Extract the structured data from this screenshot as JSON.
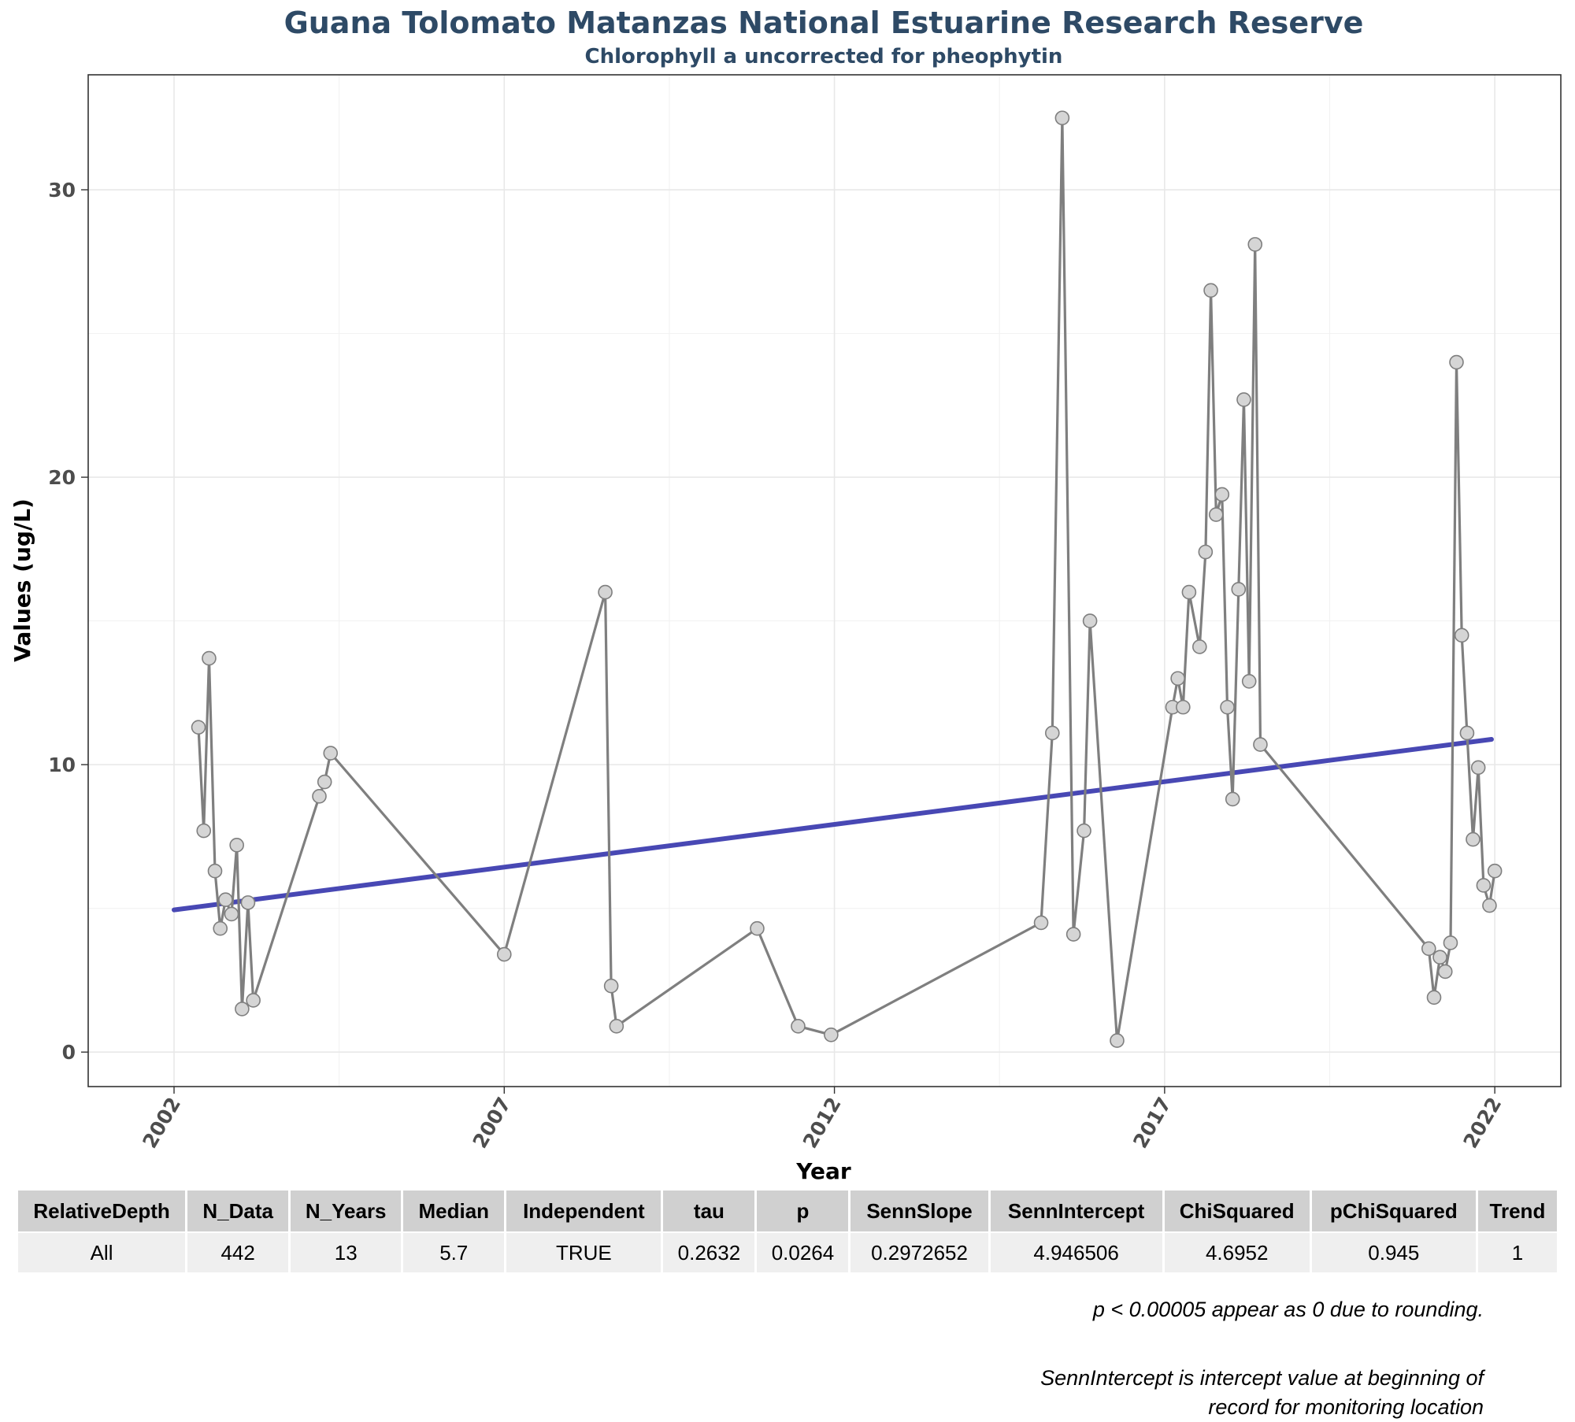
{
  "chart_data": {
    "type": "line",
    "title": "Guana Tolomato Matanzas National Estuarine Research Reserve",
    "subtitle": "Chlorophyll a uncorrected for pheophytin",
    "xlabel": "Year",
    "ylabel": "Values (ug/L)",
    "xlim": [
      2000.7,
      2023.0
    ],
    "ylim": [
      -1.2,
      34.0
    ],
    "x_ticks": [
      "2002",
      "2007",
      "2012",
      "2017",
      "2022"
    ],
    "x_tick_values": [
      2002,
      2007,
      2012,
      2017,
      2022
    ],
    "y_ticks": [
      "0",
      "10",
      "20",
      "30"
    ],
    "y_tick_values": [
      0,
      10,
      20,
      30
    ],
    "grid": true,
    "series": [
      {
        "kind": "observations",
        "color": "#7f7f7f",
        "x": [
          2002.37,
          2002.45,
          2002.53,
          2002.62,
          2002.7,
          2002.78,
          2002.87,
          2002.95,
          2003.03,
          2003.12,
          2003.2,
          2003.28,
          2004.2,
          2004.28,
          2004.37,
          2007.0,
          2008.53,
          2008.62,
          2008.7,
          2010.83,
          2011.45,
          2011.95,
          2015.13,
          2015.3,
          2015.45,
          2015.62,
          2015.78,
          2015.87,
          2016.28,
          2017.12,
          2017.2,
          2017.28,
          2017.37,
          2017.53,
          2017.62,
          2017.7,
          2017.78,
          2017.87,
          2017.95,
          2018.03,
          2018.12,
          2018.2,
          2018.28,
          2018.37,
          2018.45,
          2021.0,
          2021.08,
          2021.17,
          2021.25,
          2021.33,
          2021.42,
          2021.5,
          2021.58,
          2021.67,
          2021.75,
          2021.83,
          2021.92,
          2022.0
        ],
        "y": [
          11.3,
          7.7,
          13.7,
          6.3,
          4.3,
          5.3,
          4.8,
          7.2,
          1.5,
          5.2,
          1.8,
          null,
          8.9,
          9.4,
          10.4,
          3.4,
          16.0,
          2.3,
          0.9,
          4.3,
          0.9,
          0.6,
          4.5,
          11.1,
          32.5,
          4.1,
          7.7,
          15.0,
          0.4,
          12.0,
          13.0,
          12.0,
          16.0,
          14.1,
          17.4,
          26.5,
          18.7,
          19.4,
          12.0,
          8.8,
          16.1,
          22.7,
          12.9,
          28.1,
          10.7,
          3.6,
          1.9,
          3.3,
          2.8,
          3.8,
          24.0,
          14.5,
          11.1,
          7.4,
          9.9,
          5.8,
          5.1,
          6.3
        ]
      },
      {
        "kind": "trend",
        "color": "#4848b4",
        "x": [
          2002.0,
          2021.95
        ],
        "y": [
          4.946506,
          10.88
        ]
      }
    ]
  },
  "table": {
    "headers": [
      "RelativeDepth",
      "N_Data",
      "N_Years",
      "Median",
      "Independent",
      "tau",
      "p",
      "SennSlope",
      "SennIntercept",
      "ChiSquared",
      "pChiSquared",
      "Trend"
    ],
    "rows": [
      [
        "All",
        "442",
        "13",
        "5.7",
        "TRUE",
        "0.2632",
        "0.0264",
        "0.2972652",
        "4.946506",
        "4.6952",
        "0.945",
        "1"
      ]
    ]
  },
  "notes": {
    "rounding": "p < 0.00005 appear as 0 due to rounding.",
    "intercept_line1": "SennIntercept is intercept value at beginning of",
    "intercept_line2": "record for monitoring location"
  }
}
